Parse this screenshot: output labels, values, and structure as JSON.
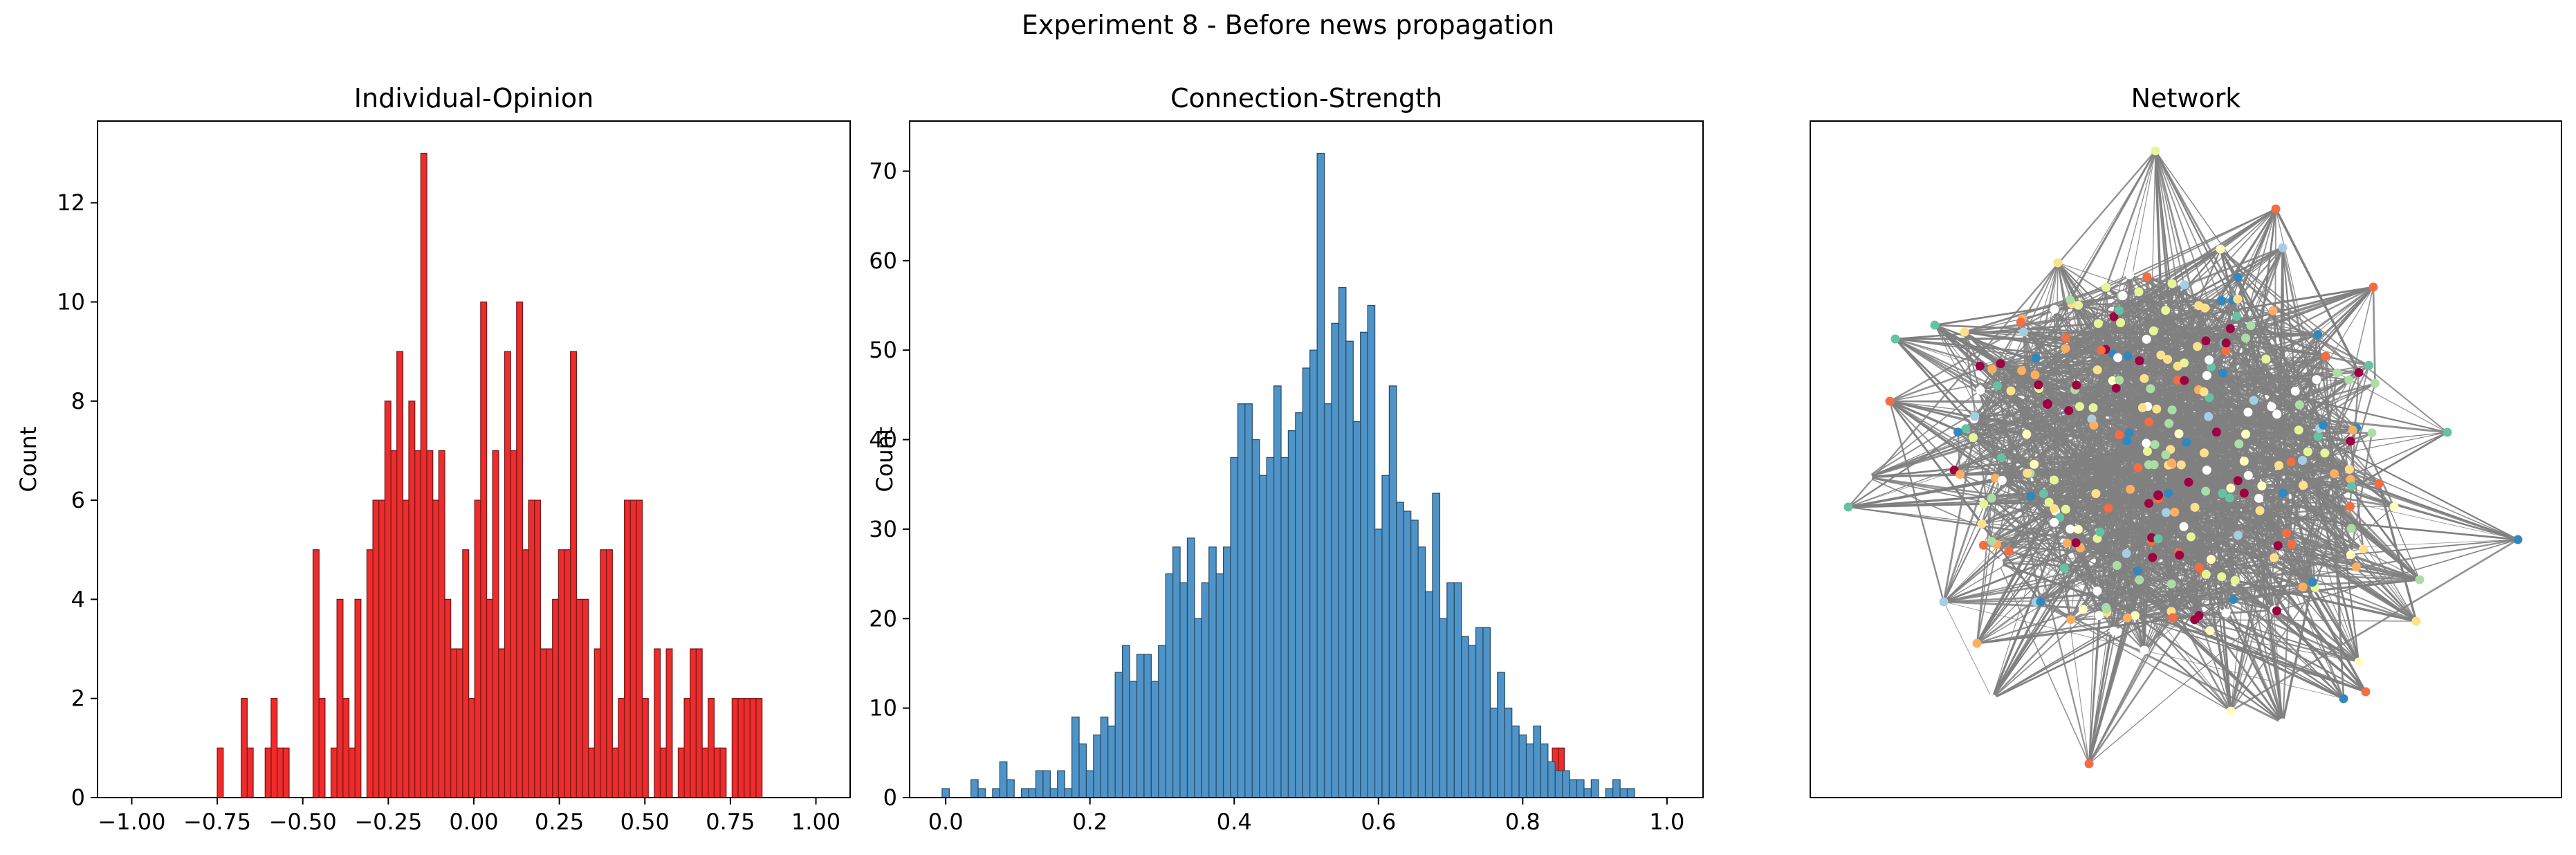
{
  "figure": {
    "suptitle": "Experiment 8 - Before news propagation"
  },
  "chart_data": [
    {
      "type": "bar",
      "title": "Individual-Opinion",
      "xlabel": "",
      "ylabel": "Count",
      "xlim": [
        -1.1,
        1.1
      ],
      "ylim": [
        0,
        13.65
      ],
      "xticks": [
        -1.0,
        -0.75,
        -0.5,
        -0.25,
        0.0,
        0.25,
        0.5,
        0.75,
        1.0
      ],
      "xtick_labels": [
        "−1.00",
        "−0.75",
        "−0.50",
        "−0.25",
        "0.00",
        "0.25",
        "0.50",
        "0.75",
        "1.00"
      ],
      "yticks": [
        0,
        2,
        4,
        6,
        8,
        10,
        12
      ],
      "ytick_labels": [
        "0",
        "2",
        "4",
        "6",
        "8",
        "10",
        "12"
      ],
      "bin_start": -0.75,
      "bin_width": 0.0175,
      "values": [
        1,
        0,
        0,
        0,
        2,
        1,
        0,
        0,
        1,
        2,
        1,
        1,
        0,
        0,
        0,
        0,
        5,
        2,
        0,
        1,
        4,
        2,
        1,
        4,
        0,
        5,
        6,
        6,
        8,
        7,
        9,
        6,
        8,
        7,
        13,
        7,
        6,
        7,
        4,
        3,
        3,
        5,
        2,
        6,
        10,
        4,
        7,
        3,
        9,
        7,
        10,
        5,
        6,
        6,
        3,
        3,
        4,
        5,
        5,
        9,
        4,
        4,
        1,
        3,
        5,
        5,
        1,
        2,
        6,
        6,
        6,
        2,
        0,
        3,
        1,
        3,
        0,
        1,
        2,
        3,
        3,
        1,
        2,
        1,
        1,
        0,
        2,
        2,
        2,
        2,
        2,
        0,
        0,
        0,
        0,
        0,
        0,
        0,
        0,
        0,
        0,
        0,
        0,
        0,
        0,
        0,
        0,
        0,
        0,
        0,
        0,
        0,
        0,
        0,
        0,
        0,
        0,
        0,
        0,
        0,
        0,
        0,
        0,
        0,
        0,
        0,
        0,
        0,
        0,
        0,
        0,
        0,
        0,
        0,
        0,
        0,
        0,
        0,
        0,
        0,
        0,
        0,
        0,
        0,
        0,
        0,
        0,
        0,
        0,
        0,
        0,
        0,
        0,
        0,
        0,
        0,
        0,
        0,
        0,
        0,
        0,
        0,
        0,
        0,
        0,
        0,
        0,
        0,
        0,
        0,
        0,
        0,
        0,
        0,
        0,
        0,
        0,
        0,
        0,
        0,
        0,
        0,
        0,
        0,
        0,
        0,
        0,
        0,
        0,
        0,
        0,
        0,
        0,
        0,
        0,
        0,
        0,
        0,
        0,
        0,
        0,
        0,
        0,
        0,
        0,
        0,
        0,
        0,
        0,
        0,
        0,
        0,
        0,
        0,
        0,
        0,
        0,
        0,
        0,
        0,
        0,
        0,
        0,
        1,
        1
      ],
      "bar_color": "#ef2b2b",
      "edge_color": "#7a1a1a"
    },
    {
      "type": "bar",
      "title": "Connection-Strength",
      "xlabel": "",
      "ylabel": "Count",
      "xlim": [
        -0.05,
        1.05
      ],
      "ylim": [
        0,
        75.6
      ],
      "xticks": [
        0.0,
        0.2,
        0.4,
        0.6,
        0.8,
        1.0
      ],
      "xtick_labels": [
        "0.0",
        "0.2",
        "0.4",
        "0.6",
        "0.8",
        "1.0"
      ],
      "yticks": [
        0,
        10,
        20,
        30,
        40,
        50,
        60,
        70
      ],
      "ytick_labels": [
        "0",
        "10",
        "20",
        "30",
        "40",
        "50",
        "60",
        "70"
      ],
      "bin_start": -0.005,
      "bin_width": 0.01,
      "values": [
        1,
        0,
        0,
        0,
        2,
        1,
        0,
        1,
        4,
        2,
        0,
        1,
        1,
        3,
        3,
        1,
        3,
        1,
        9,
        6,
        3,
        7,
        9,
        8,
        14,
        17,
        13,
        16,
        16,
        13,
        17,
        25,
        28,
        24,
        29,
        20,
        24,
        28,
        25,
        28,
        38,
        44,
        44,
        40,
        36,
        38,
        46,
        38,
        41,
        43,
        48,
        50,
        72,
        44,
        53,
        57,
        51,
        42,
        52,
        55,
        30,
        36,
        46,
        33,
        32,
        31,
        28,
        23,
        34,
        20,
        24,
        24,
        18,
        17,
        19,
        19,
        10,
        14,
        10,
        8,
        7,
        6,
        8,
        6,
        4,
        3,
        3,
        2,
        2,
        1,
        2,
        0,
        1,
        2,
        1,
        1,
        0,
        0,
        0,
        0
      ],
      "bar_color": "#4f94c8",
      "edge_color": "#2a4f6b"
    },
    {
      "type": "network",
      "title": "Network",
      "node_palette": [
        "#9e0142",
        "#f46d43",
        "#fdae61",
        "#fee08b",
        "#ffffbf",
        "#e6f598",
        "#abdda4",
        "#66c2a5",
        "#3288bd",
        "#a6cee3",
        "#ffffff"
      ],
      "edge_color": "#808080"
    }
  ]
}
